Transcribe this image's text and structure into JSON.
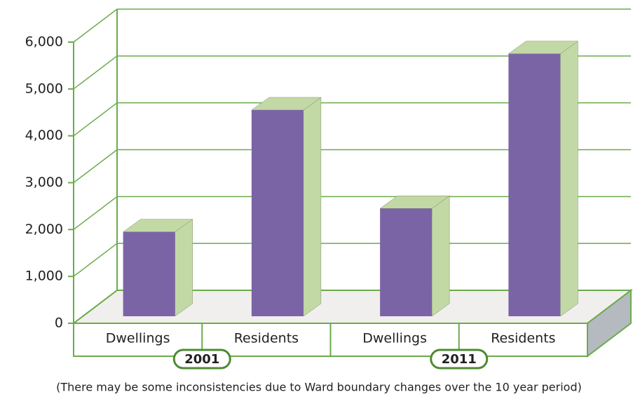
{
  "chart_data": {
    "type": "bar3d",
    "categories": [
      "Dwellings",
      "Residents",
      "Dwellings",
      "Residents"
    ],
    "values": [
      1800,
      4400,
      2300,
      5600
    ],
    "groups": [
      "2001",
      "2011"
    ],
    "color": "#7b64a6",
    "side_color": "#c2d9a5",
    "grid_color": "#6aab4a",
    "ylim": [
      0,
      6000
    ],
    "yticks": [
      0,
      {
        "value": 1000,
        "label": "1,000"
      },
      {
        "value": 2000,
        "label": "2,000"
      },
      {
        "value": 3000,
        "label": "3,000"
      },
      {
        "value": 4000,
        "label": "4,000"
      },
      {
        "value": 5000,
        "label": "5,000"
      },
      {
        "value": 6000,
        "label": "6,000"
      }
    ],
    "grid": true,
    "note": "(There may be some inconsistencies due to Ward boundary changes over the 10 year period)"
  }
}
